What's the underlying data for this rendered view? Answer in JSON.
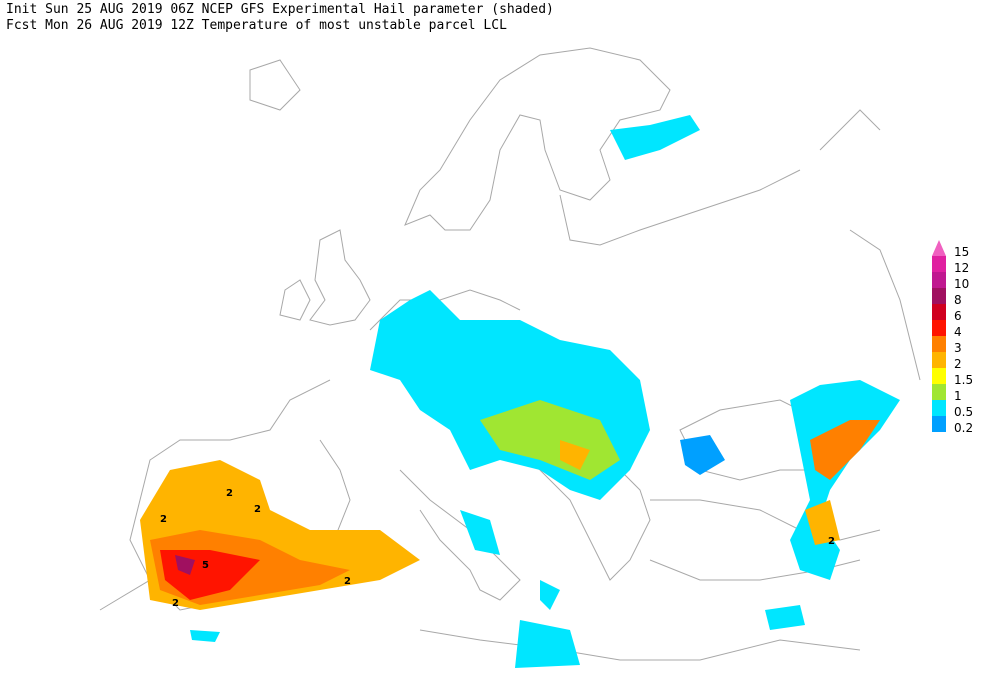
{
  "header": {
    "line1": "Init  Sun 25 AUG 2019 06Z  NCEP GFS Experimental Hail parameter (shaded)",
    "line2": "Fcst Mon 26 AUG 2019 12Z  Temperature of most unstable parcel LCL"
  },
  "legend": [
    {
      "label": "15",
      "color": "#f060c0"
    },
    {
      "label": "12",
      "color": "#e020a0"
    },
    {
      "label": "10",
      "color": "#c01890"
    },
    {
      "label": "8",
      "color": "#a01060"
    },
    {
      "label": "6",
      "color": "#d00020"
    },
    {
      "label": "4",
      "color": "#ff1400"
    },
    {
      "label": "3",
      "color": "#ff8000"
    },
    {
      "label": "2",
      "color": "#ffb400"
    },
    {
      "label": "1.5",
      "color": "#ffff00"
    },
    {
      "label": "1",
      "color": "#a0e632"
    },
    {
      "label": "0.5",
      "color": "#00e6ff"
    },
    {
      "label": "0.2",
      "color": "#00a0ff"
    }
  ],
  "map": {
    "contour_labels": [
      "2",
      "2",
      "2",
      "5",
      "2",
      "2",
      "2"
    ]
  }
}
